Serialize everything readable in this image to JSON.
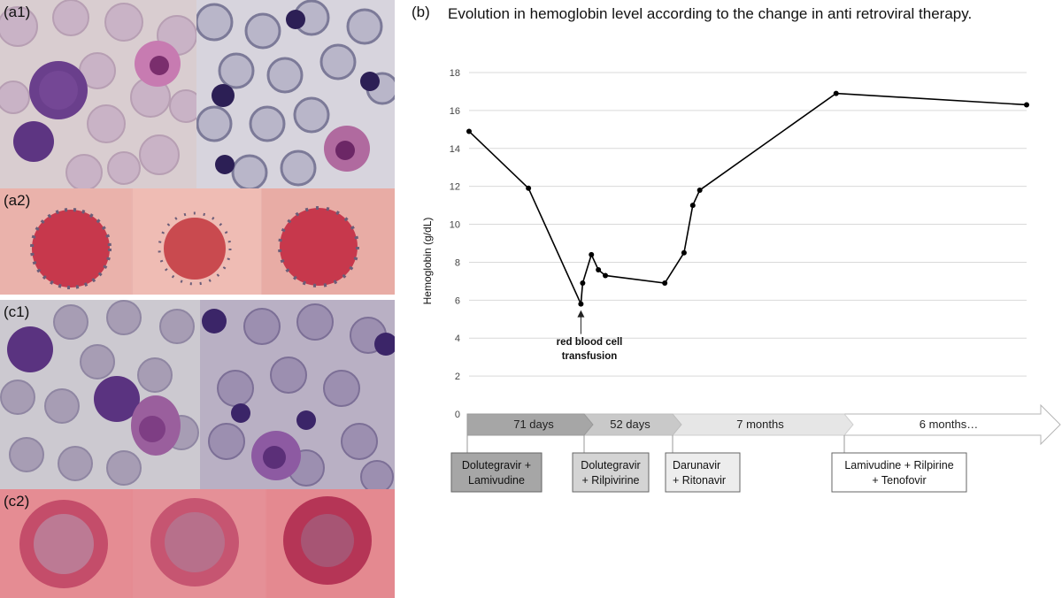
{
  "panels": {
    "a1": "(a1)",
    "a2": "(a2)",
    "b": "(b)",
    "c1": "(c1)",
    "c2": "(c2)"
  },
  "colors": {
    "line": "#000000",
    "grid": "#d9d9d9",
    "timeline_dark": "#a6a6a6",
    "timeline_mid": "#c9c9c9",
    "timeline_light": "#e6e6e6",
    "timeline_white": "#ffffff"
  },
  "chart_data": {
    "type": "line",
    "title": "Evolution in hemoglobin level according to the change in anti retroviral therapy.",
    "ylabel": "Hemoglobin (g/dL)",
    "ylim": [
      0,
      18
    ],
    "yticks": [
      0,
      2,
      4,
      6,
      8,
      10,
      12,
      14,
      16,
      18
    ],
    "grid": true,
    "series": [
      {
        "points": [
          {
            "x": 0,
            "y": 14.9
          },
          {
            "x": 34,
            "y": 11.9
          },
          {
            "x": 64,
            "y": 5.8
          },
          {
            "x": 65,
            "y": 6.9
          },
          {
            "x": 70,
            "y": 8.4
          },
          {
            "x": 74,
            "y": 7.6
          },
          {
            "x": 78,
            "y": 7.3
          },
          {
            "x": 112,
            "y": 6.9
          },
          {
            "x": 123,
            "y": 8.5
          },
          {
            "x": 128,
            "y": 11.0
          },
          {
            "x": 132,
            "y": 11.8
          },
          {
            "x": 210,
            "y": 16.9
          },
          {
            "x": 319,
            "y": 16.3
          }
        ]
      }
    ],
    "annotation": {
      "text_line1": "red blood cell",
      "text_line2": "transfusion",
      "x": 64
    },
    "timeline": [
      {
        "duration": "71 days",
        "regimen_line1": "Dolutegravir +",
        "regimen_line2": "Lamivudine"
      },
      {
        "duration": "52 days",
        "regimen_line1": "Dolutegravir",
        "regimen_line2": "+ Rilpivirine"
      },
      {
        "duration": "7 months",
        "regimen_line1": "Darunavir",
        "regimen_line2": "+ Ritonavir"
      },
      {
        "duration": "6 months…",
        "regimen_line1": "Lamivudine + Rilpirine",
        "regimen_line2": "+ Tenofovir"
      }
    ]
  }
}
